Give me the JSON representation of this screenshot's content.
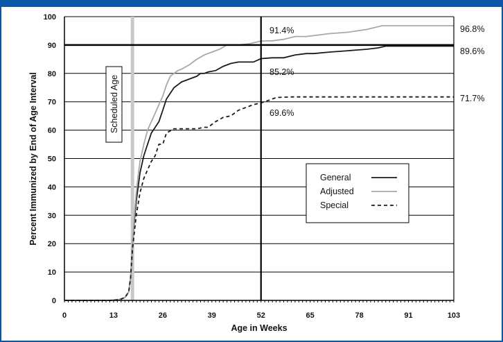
{
  "chart_data": {
    "type": "line",
    "title": "",
    "xlabel": "Age in Weeks",
    "ylabel": "Percent Immunized by End of Age Interval",
    "xlim": [
      0,
      103
    ],
    "ylim": [
      0,
      100
    ],
    "x_ticks": [
      "0",
      "13",
      "26",
      "39",
      "52",
      "65",
      "78",
      "91",
      "103"
    ],
    "y_ticks": [
      "0",
      "10",
      "20",
      "30",
      "40",
      "50",
      "60",
      "70",
      "80",
      "90",
      "100"
    ],
    "grid": "horizontal",
    "legend_position": "center-right",
    "scheduled_age": {
      "label": "Scheduled Age",
      "x": 18
    },
    "reference_x": 52,
    "reference_y": 90,
    "series": [
      {
        "name": "General",
        "style": "solid",
        "color": "#1a1a1a",
        "x": [
          0,
          12,
          14,
          15,
          16,
          17,
          17.5,
          18,
          18.5,
          19,
          19.5,
          20,
          21,
          22,
          23,
          24,
          25,
          26,
          27,
          28,
          29,
          30,
          31,
          33,
          35,
          36,
          37,
          38,
          40,
          42,
          44,
          46,
          48,
          50,
          52,
          55,
          58,
          61,
          64,
          66,
          70,
          75,
          80,
          83,
          85,
          88,
          92,
          98,
          103
        ],
        "y": [
          0,
          0,
          0.2,
          0.5,
          1,
          3,
          8,
          20,
          28,
          35,
          40,
          45,
          51,
          55,
          59,
          61,
          63,
          67,
          71,
          73,
          75,
          76,
          77,
          78,
          79,
          80,
          80,
          80.5,
          81,
          82.5,
          83.5,
          84,
          84,
          84,
          85.2,
          85.5,
          85.5,
          86.5,
          87,
          87,
          87.5,
          88,
          88.5,
          89,
          89.6,
          89.6,
          89.6,
          89.6,
          89.6
        ]
      },
      {
        "name": "Adjusted",
        "style": "solid",
        "color": "#a8a8a8",
        "x": [
          0,
          12,
          14,
          15,
          16,
          17,
          17.5,
          18,
          18.5,
          19,
          19.5,
          20,
          21,
          22,
          23,
          24,
          25,
          26,
          27,
          28,
          29,
          30,
          31,
          33,
          35,
          37,
          39,
          41,
          43,
          46,
          49,
          52,
          55,
          58,
          61,
          64,
          67,
          70,
          75,
          80,
          84,
          88,
          92,
          98,
          103
        ],
        "y": [
          0,
          0,
          0.2,
          0.5,
          1,
          3,
          8,
          20,
          30,
          38,
          44,
          49,
          55,
          60,
          63,
          66,
          69,
          72,
          76,
          79,
          80,
          81,
          81.5,
          83,
          85,
          86.5,
          87.5,
          88.5,
          90,
          90,
          90.5,
          91.4,
          91.5,
          92,
          93,
          93,
          93.5,
          94,
          94.5,
          95.5,
          96.8,
          96.8,
          96.8,
          96.8,
          96.8
        ]
      },
      {
        "name": "Special",
        "style": "dashed",
        "color": "#1a1a1a",
        "x": [
          0,
          12,
          14,
          15,
          16,
          17,
          17.5,
          18,
          18.5,
          19,
          20,
          21,
          22,
          23,
          24,
          25,
          26,
          27,
          29,
          31,
          33,
          35,
          37,
          38,
          39,
          40,
          42,
          44,
          45,
          46,
          48,
          50,
          52,
          54,
          56,
          60,
          70,
          80,
          90,
          103
        ],
        "y": [
          0,
          0,
          0.2,
          0.5,
          1,
          3,
          8,
          18,
          24,
          30,
          38,
          43,
          46,
          49,
          51,
          55,
          55,
          59,
          60.5,
          60.5,
          60.5,
          60.5,
          61,
          61,
          62,
          63,
          64.5,
          65,
          66,
          67,
          68,
          69,
          69.6,
          70.5,
          71.5,
          71.7,
          71.7,
          71.7,
          71.7,
          71.7
        ]
      }
    ],
    "annotations": [
      "91.4%",
      "85.2%",
      "69.6%",
      "96.8%",
      "89.6%",
      "71.7%"
    ]
  }
}
